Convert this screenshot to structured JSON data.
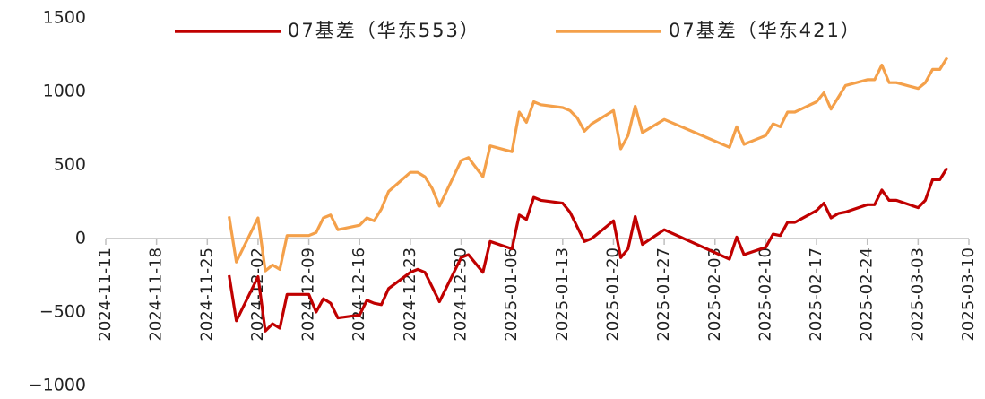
{
  "chart_data": {
    "type": "line",
    "x": [
      "2024-11-28",
      "2024-11-29",
      "2024-12-02",
      "2024-12-03",
      "2024-12-04",
      "2024-12-05",
      "2024-12-06",
      "2024-12-09",
      "2024-12-10",
      "2024-12-11",
      "2024-12-12",
      "2024-12-13",
      "2024-12-16",
      "2024-12-17",
      "2024-12-18",
      "2024-12-19",
      "2024-12-20",
      "2024-12-23",
      "2024-12-24",
      "2024-12-25",
      "2024-12-26",
      "2024-12-27",
      "2024-12-30",
      "2024-12-31",
      "2025-01-02",
      "2025-01-03",
      "2025-01-06",
      "2025-01-07",
      "2025-01-08",
      "2025-01-09",
      "2025-01-10",
      "2025-01-13",
      "2025-01-14",
      "2025-01-15",
      "2025-01-16",
      "2025-01-17",
      "2025-01-20",
      "2025-01-21",
      "2025-01-22",
      "2025-01-23",
      "2025-01-24",
      "2025-01-27",
      "2025-02-05",
      "2025-02-06",
      "2025-02-07",
      "2025-02-10",
      "2025-02-11",
      "2025-02-12",
      "2025-02-13",
      "2025-02-14",
      "2025-02-17",
      "2025-02-18",
      "2025-02-19",
      "2025-02-20",
      "2025-02-21",
      "2025-02-24",
      "2025-02-25",
      "2025-02-26",
      "2025-02-27",
      "2025-02-28",
      "2025-03-03",
      "2025-03-04",
      "2025-03-05",
      "2025-03-06",
      "2025-03-07"
    ],
    "series": [
      {
        "name": "07基差（华东553）",
        "color": "#c00000",
        "values": [
          -250,
          -560,
          -260,
          -630,
          -580,
          -610,
          -380,
          -380,
          -500,
          -410,
          -440,
          -540,
          -520,
          -420,
          -440,
          -450,
          -340,
          -230,
          -210,
          -230,
          -330,
          -430,
          -130,
          -110,
          -230,
          -20,
          -70,
          160,
          130,
          280,
          260,
          240,
          180,
          80,
          -20,
          0,
          120,
          -130,
          -70,
          150,
          -40,
          60,
          -140,
          10,
          -110,
          -60,
          30,
          20,
          110,
          110,
          190,
          240,
          140,
          170,
          180,
          230,
          230,
          330,
          260,
          260,
          210,
          260,
          400,
          400,
          480
        ]
      },
      {
        "name": "07基差（华东421）",
        "color": "#f4a04a",
        "values": [
          150,
          -160,
          140,
          -220,
          -180,
          -210,
          20,
          20,
          40,
          140,
          160,
          60,
          90,
          140,
          120,
          200,
          320,
          450,
          450,
          420,
          340,
          220,
          530,
          550,
          420,
          630,
          590,
          860,
          790,
          930,
          910,
          890,
          870,
          820,
          730,
          780,
          870,
          610,
          700,
          900,
          720,
          810,
          620,
          760,
          640,
          700,
          780,
          760,
          860,
          860,
          930,
          990,
          880,
          960,
          1040,
          1080,
          1080,
          1180,
          1060,
          1060,
          1020,
          1060,
          1150,
          1150,
          1230
        ]
      }
    ],
    "xlim": [
      "2024-11-11",
      "2025-03-10"
    ],
    "xticks": [
      "2024-11-11",
      "2024-11-18",
      "2024-11-25",
      "2024-12-02",
      "2024-12-09",
      "2024-12-16",
      "2024-12-23",
      "2024-12-30",
      "2025-01-06",
      "2025-01-13",
      "2025-01-20",
      "2025-01-27",
      "2025-02-03",
      "2025-02-10",
      "2025-02-17",
      "2025-02-24",
      "2025-03-03",
      "2025-03-10"
    ],
    "ylim": [
      -1000,
      1500
    ],
    "yticks": [
      {
        "value": -1000,
        "label": "−1000"
      },
      {
        "value": -500,
        "label": "−500"
      },
      0,
      500,
      1000,
      1500
    ],
    "grid": false,
    "legend": "top"
  }
}
